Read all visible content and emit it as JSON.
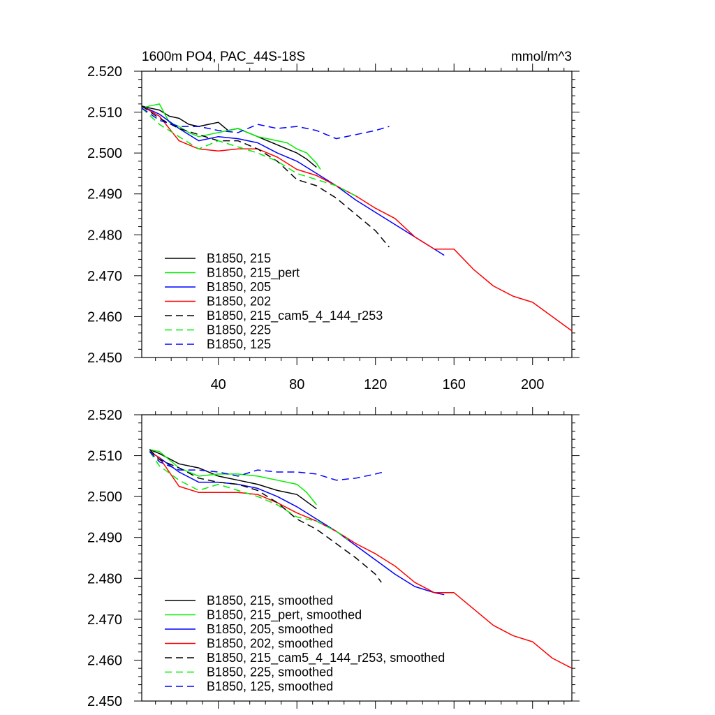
{
  "header": {
    "title": "1600m PO4, PAC_44S-18S",
    "units": "mmol/m^3"
  },
  "chart_data": [
    {
      "type": "line",
      "panel": "top",
      "xlim": [
        1,
        220
      ],
      "ylim": [
        2.45,
        2.52
      ],
      "x_ticks": [
        40,
        80,
        120,
        160,
        200
      ],
      "x_tick_labels": [
        "40",
        "80",
        "120",
        "160",
        "200"
      ],
      "y_ticks": [
        2.45,
        2.46,
        2.47,
        2.48,
        2.49,
        2.5,
        2.51,
        2.52
      ],
      "y_tick_labels": [
        "2.450",
        "2.460",
        "2.470",
        "2.480",
        "2.490",
        "2.500",
        "2.510",
        "2.520"
      ],
      "legend_position": "lower-left",
      "series": [
        {
          "name": "B1850, 215",
          "color": "#000000",
          "dash": "solid",
          "x": [
            1,
            5,
            10,
            15,
            20,
            25,
            30,
            35,
            40,
            45,
            50,
            55,
            60,
            65,
            70,
            75,
            80,
            85,
            90
          ],
          "y": [
            2.5115,
            2.511,
            2.5105,
            2.509,
            2.5085,
            2.507,
            2.5065,
            2.507,
            2.5075,
            2.5055,
            2.506,
            2.505,
            2.504,
            2.503,
            2.502,
            2.501,
            2.5,
            2.4985,
            2.4965
          ]
        },
        {
          "name": "B1850, 215_pert",
          "color": "#00ee00",
          "dash": "solid",
          "x": [
            1,
            5,
            10,
            15,
            20,
            25,
            30,
            35,
            40,
            45,
            50,
            55,
            60,
            65,
            70,
            75,
            80,
            85,
            90,
            92
          ],
          "y": [
            2.511,
            2.5115,
            2.512,
            2.5075,
            2.5065,
            2.505,
            2.504,
            2.5045,
            2.505,
            2.5055,
            2.506,
            2.505,
            2.504,
            2.5035,
            2.503,
            2.5025,
            2.501,
            2.5,
            2.4975,
            2.496
          ]
        },
        {
          "name": "B1850, 205",
          "color": "#0000ff",
          "dash": "solid",
          "x": [
            1,
            10,
            20,
            30,
            40,
            50,
            60,
            70,
            80,
            90,
            100,
            110,
            120,
            130,
            140,
            145,
            150,
            155
          ],
          "y": [
            2.5115,
            2.5095,
            2.506,
            2.503,
            2.504,
            2.5035,
            2.5025,
            2.5,
            2.498,
            2.495,
            2.492,
            2.4885,
            2.4855,
            2.4825,
            2.4795,
            2.478,
            2.4765,
            2.475
          ]
        },
        {
          "name": "B1850, 202",
          "color": "#ff0000",
          "dash": "solid",
          "x": [
            1,
            10,
            20,
            30,
            40,
            50,
            60,
            70,
            80,
            90,
            100,
            110,
            120,
            130,
            140,
            150,
            160,
            170,
            180,
            190,
            200,
            210,
            220
          ],
          "y": [
            2.5115,
            2.509,
            2.503,
            2.501,
            2.5005,
            2.501,
            2.501,
            2.499,
            2.496,
            2.4945,
            2.492,
            2.4895,
            2.4865,
            2.484,
            2.4795,
            2.4765,
            2.4765,
            2.4715,
            2.4675,
            2.465,
            2.4635,
            2.46,
            2.4565
          ]
        },
        {
          "name": "B1850, 215_cam5_4_144_r253",
          "color": "#000000",
          "dash": "dashed",
          "x": [
            1,
            10,
            20,
            30,
            40,
            50,
            60,
            70,
            80,
            90,
            100,
            105,
            110,
            115,
            120,
            127
          ],
          "y": [
            2.5115,
            2.5085,
            2.506,
            2.5045,
            2.503,
            2.503,
            2.501,
            2.498,
            2.4935,
            2.492,
            2.489,
            2.487,
            2.485,
            2.483,
            2.481,
            2.477
          ]
        },
        {
          "name": "B1850, 225",
          "color": "#00ee00",
          "dash": "dashed",
          "x": [
            1,
            10,
            20,
            30,
            40,
            50,
            60,
            70,
            80,
            90,
            100,
            110
          ],
          "y": [
            2.511,
            2.507,
            2.504,
            2.501,
            2.503,
            2.5015,
            2.5,
            2.498,
            2.495,
            2.4935,
            2.492,
            2.4895
          ]
        },
        {
          "name": "B1850, 125",
          "color": "#0000ff",
          "dash": "dashed",
          "x": [
            1,
            10,
            20,
            30,
            40,
            50,
            60,
            70,
            80,
            90,
            100,
            110,
            120,
            127
          ],
          "y": [
            2.511,
            2.508,
            2.5065,
            2.5065,
            2.5055,
            2.505,
            2.507,
            2.506,
            2.5065,
            2.5055,
            2.5035,
            2.5045,
            2.5055,
            2.5065
          ]
        }
      ]
    },
    {
      "type": "line",
      "panel": "bottom",
      "xlim": [
        1,
        220
      ],
      "ylim": [
        2.45,
        2.52
      ],
      "x_ticks": [
        40,
        80,
        120,
        160,
        200
      ],
      "y_ticks": [
        2.45,
        2.46,
        2.47,
        2.48,
        2.49,
        2.5,
        2.51,
        2.52
      ],
      "y_tick_labels": [
        "2.450",
        "2.460",
        "2.470",
        "2.480",
        "2.490",
        "2.500",
        "2.510",
        "2.520"
      ],
      "legend_position": "lower-left",
      "series": [
        {
          "name": "B1850, 215, smoothed",
          "color": "#000000",
          "dash": "solid",
          "x": [
            5,
            10,
            20,
            30,
            40,
            50,
            60,
            70,
            80,
            90
          ],
          "y": [
            2.5115,
            2.5105,
            2.508,
            2.507,
            2.505,
            2.504,
            2.503,
            2.5015,
            2.5005,
            2.497
          ]
        },
        {
          "name": "B1850, 215_pert, smoothed",
          "color": "#00ee00",
          "dash": "solid",
          "x": [
            5,
            10,
            20,
            30,
            40,
            50,
            60,
            70,
            80,
            85,
            90
          ],
          "y": [
            2.5115,
            2.511,
            2.507,
            2.505,
            2.5055,
            2.5055,
            2.505,
            2.504,
            2.503,
            2.501,
            2.498
          ]
        },
        {
          "name": "B1850, 205, smoothed",
          "color": "#0000ff",
          "dash": "solid",
          "x": [
            5,
            10,
            20,
            30,
            40,
            50,
            60,
            70,
            80,
            90,
            100,
            110,
            120,
            130,
            140,
            150,
            155
          ],
          "y": [
            2.511,
            2.5095,
            2.506,
            2.5035,
            2.5035,
            2.503,
            2.502,
            2.5,
            2.4975,
            2.4945,
            2.4915,
            2.488,
            2.4845,
            2.481,
            2.478,
            2.4765,
            2.476
          ]
        },
        {
          "name": "B1850, 202, smoothed",
          "color": "#ff0000",
          "dash": "solid",
          "x": [
            5,
            10,
            20,
            30,
            40,
            50,
            60,
            70,
            80,
            90,
            100,
            110,
            120,
            130,
            140,
            150,
            160,
            170,
            180,
            190,
            200,
            210,
            220
          ],
          "y": [
            2.511,
            2.5095,
            2.5025,
            2.501,
            2.501,
            2.501,
            2.5005,
            2.4985,
            2.496,
            2.494,
            2.4915,
            2.4885,
            2.486,
            2.483,
            2.479,
            2.4765,
            2.4765,
            2.4725,
            2.4685,
            2.466,
            2.4645,
            2.4605,
            2.458
          ]
        },
        {
          "name": "B1850, 215_cam5_4_144_r253, smoothed",
          "color": "#000000",
          "dash": "dashed",
          "x": [
            5,
            10,
            20,
            30,
            40,
            50,
            60,
            70,
            80,
            90,
            100,
            110,
            120,
            123
          ],
          "y": [
            2.5115,
            2.509,
            2.507,
            2.5045,
            2.5035,
            2.503,
            2.5015,
            2.4985,
            2.4945,
            2.492,
            2.4885,
            2.485,
            2.481,
            2.479
          ]
        },
        {
          "name": "B1850, 225, smoothed",
          "color": "#00ee00",
          "dash": "dashed",
          "x": [
            5,
            10,
            20,
            30,
            40,
            50,
            60,
            70,
            80,
            90,
            100,
            106
          ],
          "y": [
            2.511,
            2.5075,
            2.504,
            2.5015,
            2.503,
            2.5015,
            2.5,
            2.498,
            2.495,
            2.494,
            2.4915,
            2.4895
          ]
        },
        {
          "name": "B1850, 125, smoothed",
          "color": "#0000ff",
          "dash": "dashed",
          "x": [
            5,
            10,
            20,
            30,
            40,
            50,
            60,
            70,
            80,
            90,
            100,
            110,
            120,
            124
          ],
          "y": [
            2.511,
            2.5085,
            2.5065,
            2.5065,
            2.506,
            2.505,
            2.5065,
            2.506,
            2.506,
            2.5055,
            2.504,
            2.5045,
            2.5055,
            2.506
          ]
        }
      ]
    }
  ]
}
